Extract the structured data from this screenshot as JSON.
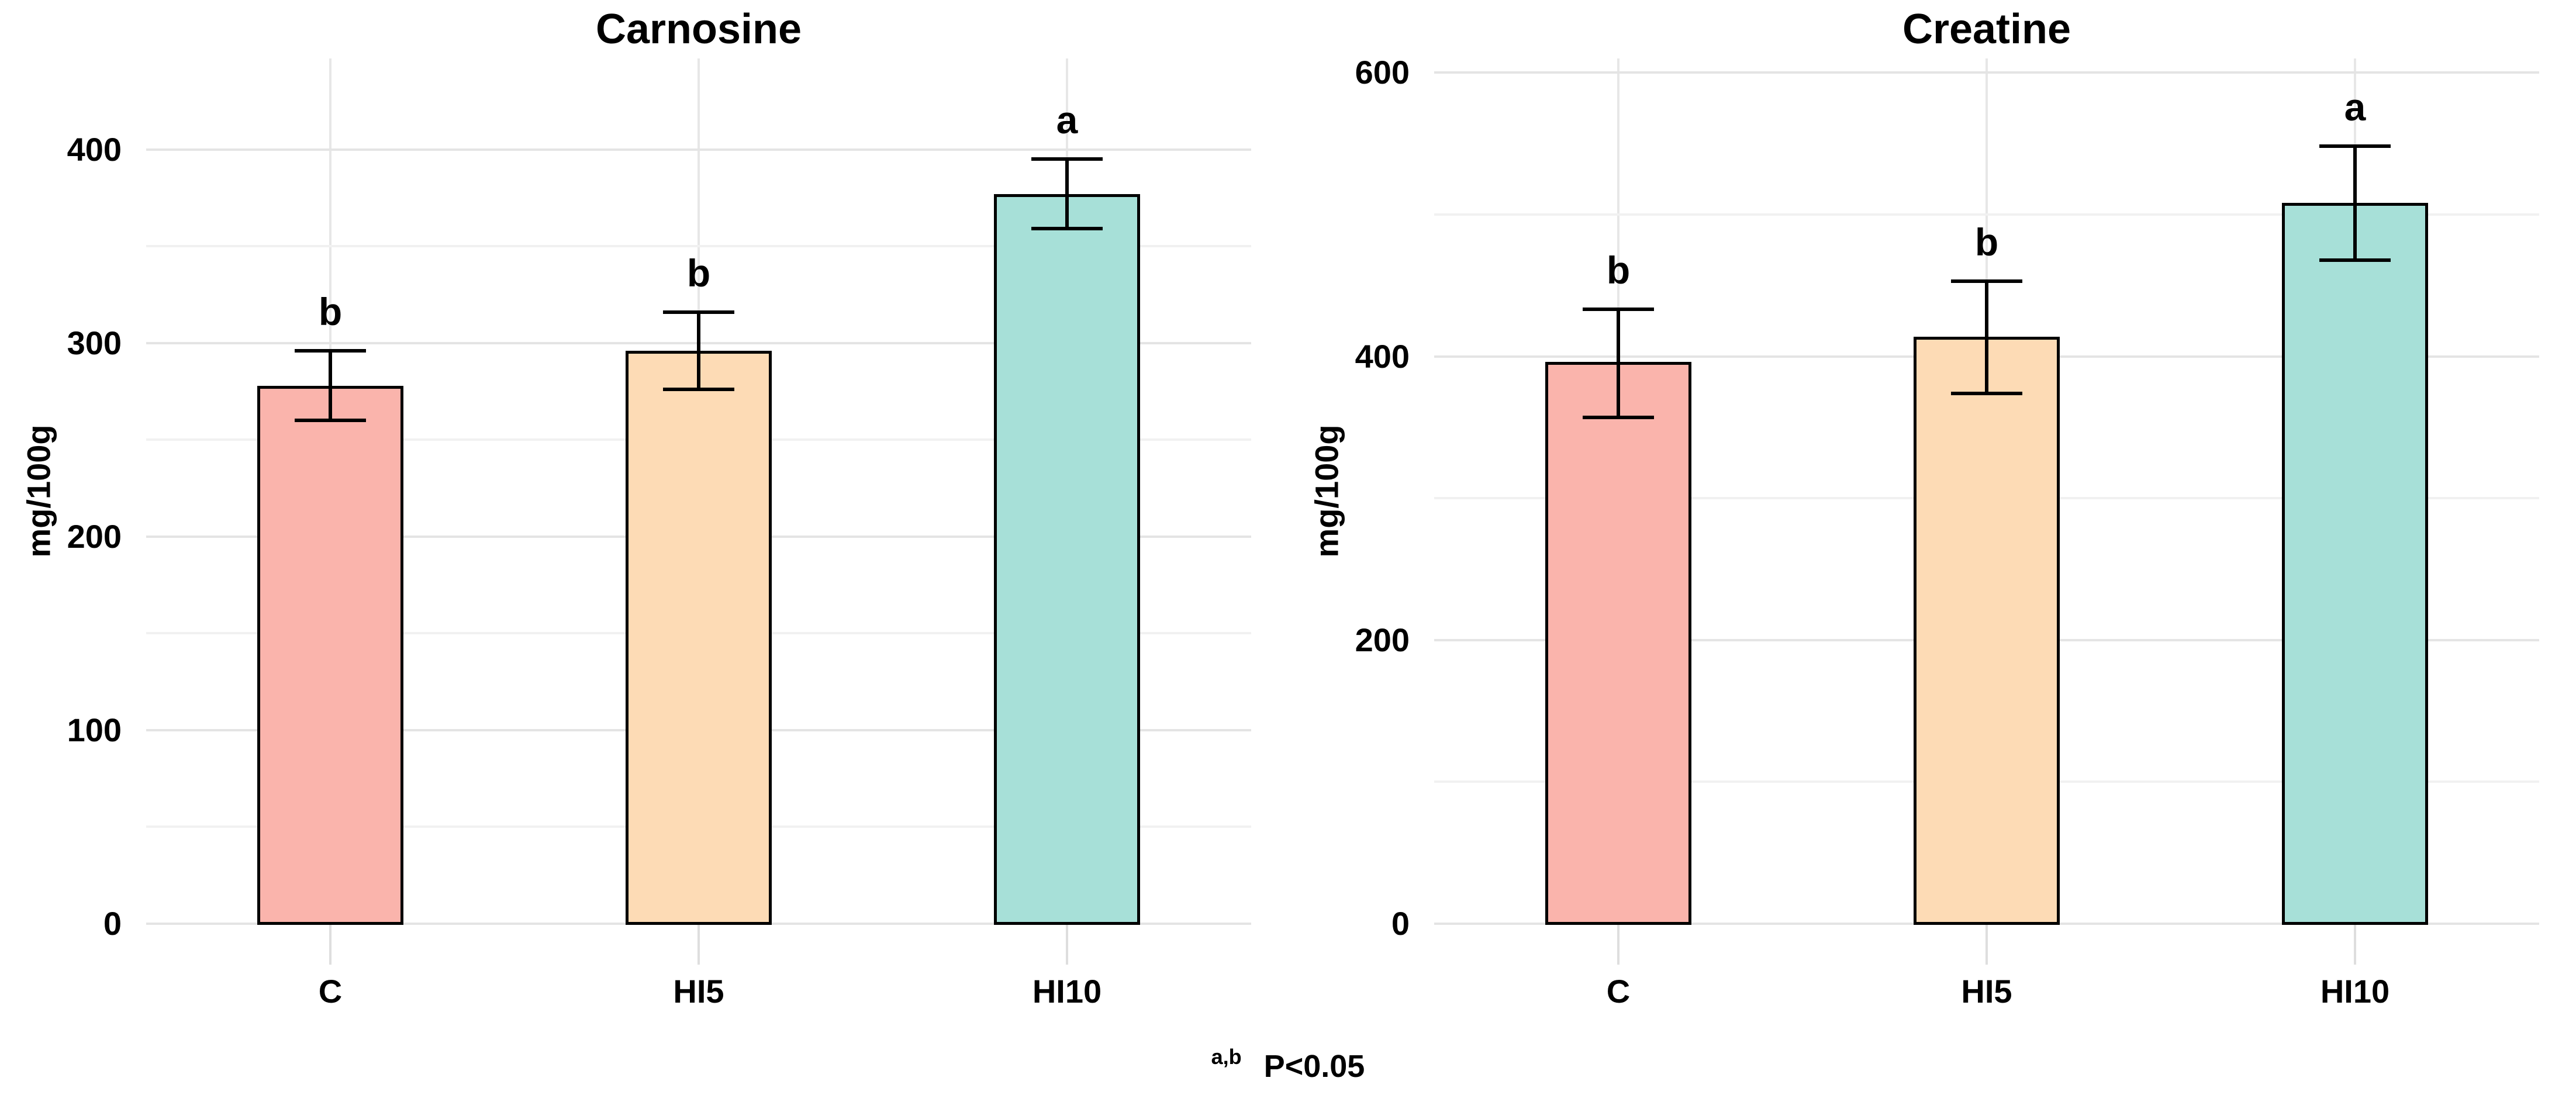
{
  "figure": {
    "background": "#ffffff"
  },
  "footnote": {
    "superscript": "a,b",
    "text": "P<0.05"
  },
  "colors": {
    "bar_outline": "#000000",
    "error_bar": "#000000",
    "major_gridline": "#e4e4e4",
    "minor_gridline": "#f1f1f1",
    "text": "#000000"
  },
  "chart_data": [
    {
      "type": "bar",
      "title": "Carnosine",
      "xlabel": "",
      "ylabel": "mg/100g",
      "categories": [
        "C",
        "HI5",
        "HI10"
      ],
      "values": [
        278,
        296,
        377
      ],
      "error_upper": [
        296,
        316,
        395
      ],
      "error_lower": [
        260,
        276,
        359
      ],
      "sig_letters": [
        "b",
        "b",
        "a"
      ],
      "bar_colors": [
        "#FAB4AC",
        "#FDDBB5",
        "#A7E0D8"
      ],
      "ylim": [
        0,
        447
      ],
      "yticks": [
        0,
        100,
        200,
        300,
        400
      ],
      "minor_step": 50,
      "grid": true,
      "legend": "none"
    },
    {
      "type": "bar",
      "title": "Creatine",
      "xlabel": "",
      "ylabel": "mg/100g",
      "categories": [
        "C",
        "HI5",
        "HI10"
      ],
      "values": [
        396,
        414,
        508
      ],
      "error_upper": [
        433,
        453,
        548
      ],
      "error_lower": [
        357,
        374,
        468
      ],
      "sig_letters": [
        "b",
        "b",
        "a"
      ],
      "bar_colors": [
        "#FAB4AC",
        "#FDDBB5",
        "#A7E0D8"
      ],
      "ylim": [
        0,
        610
      ],
      "yticks": [
        0,
        200,
        400,
        600
      ],
      "minor_step": 100,
      "grid": true,
      "legend": "none"
    }
  ]
}
